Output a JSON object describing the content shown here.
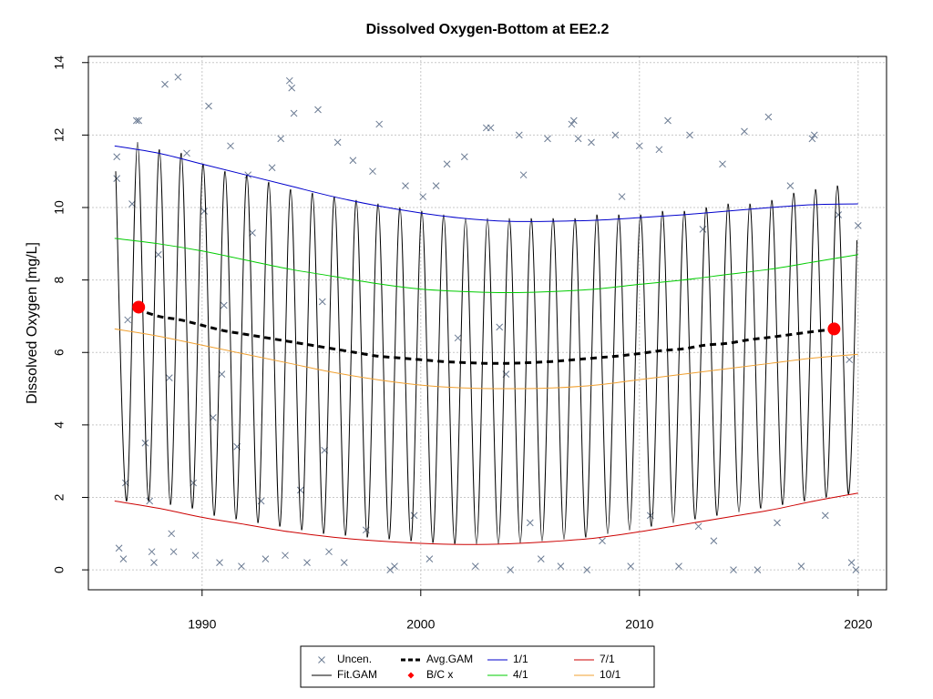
{
  "chart_data": {
    "type": "line",
    "title": "Dissolved Oxygen-Bottom at EE2.2",
    "y_label": "Dissolved Oxygen [mg/L]",
    "xlim": [
      1984.8,
      2021.3
    ],
    "ylim": [
      -0.55,
      14.17
    ],
    "xticks": [
      1990,
      2000,
      2010,
      2020
    ],
    "yticks": [
      0,
      2,
      4,
      6,
      8,
      10,
      12,
      14
    ],
    "grid": true,
    "legend": "bottom",
    "series": [
      {
        "name": "Uncen.",
        "kind": "scatter",
        "marker": "x",
        "color": "#6b7b93",
        "x": [
          1986.1,
          1986.1,
          1986.2,
          1986.4,
          1986.5,
          1986.6,
          1986.8,
          1987.0,
          1987.1,
          1987.4,
          1987.6,
          1987.7,
          1987.8,
          1988.0,
          1988.3,
          1988.5,
          1988.6,
          1988.7,
          1988.9,
          1989.3,
          1989.6,
          1989.7,
          1990.1,
          1990.3,
          1990.5,
          1990.8,
          1991.0,
          1991.3,
          1991.6,
          1991.8,
          1992.1,
          1992.3,
          1992.7,
          1992.9,
          1993.2,
          1993.6,
          1993.8,
          1994.0,
          1994.1,
          1994.2,
          1994.5,
          1994.8,
          1995.3,
          1995.6,
          1995.8,
          1996.2,
          1996.5,
          1996.9,
          1997.5,
          1997.8,
          1998.1,
          1998.6,
          1998.8,
          1999.3,
          1999.7,
          2000.1,
          2000.4,
          2000.7,
          2001.2,
          2001.7,
          2002.0,
          2002.5,
          2003.0,
          2003.2,
          2003.6,
          2004.1,
          2004.5,
          2004.7,
          2005.0,
          2005.5,
          2005.8,
          2006.4,
          2006.9,
          2007.0,
          2007.2,
          2007.6,
          2007.8,
          2008.3,
          2008.9,
          2009.2,
          2009.6,
          2010.0,
          2010.5,
          2010.9,
          2011.3,
          2011.8,
          2012.3,
          2012.7,
          2013.4,
          2013.8,
          2014.3,
          2014.8,
          2015.4,
          2015.9,
          2016.3,
          2016.9,
          2017.4,
          2017.9,
          2018.0,
          2018.5,
          2019.1,
          2019.7,
          2019.9,
          2020.0,
          2019.6,
          2012.9,
          2003.9,
          1995.5,
          1990.9
        ],
        "values": [
          11.4,
          10.8,
          0.6,
          0.3,
          2.4,
          6.9,
          10.1,
          12.4,
          12.4,
          3.5,
          1.9,
          0.5,
          0.2,
          8.7,
          13.4,
          5.3,
          1.0,
          0.5,
          13.6,
          11.5,
          2.4,
          0.4,
          9.9,
          12.8,
          4.2,
          0.2,
          7.3,
          11.7,
          3.4,
          0.1,
          10.9,
          9.3,
          1.9,
          0.3,
          11.1,
          11.9,
          0.4,
          13.5,
          13.3,
          12.6,
          2.2,
          0.2,
          12.7,
          3.3,
          0.5,
          11.8,
          0.2,
          11.3,
          1.1,
          11.0,
          12.3,
          0.0,
          0.1,
          10.6,
          1.5,
          10.3,
          0.3,
          10.6,
          11.2,
          6.4,
          11.4,
          0.1,
          12.2,
          12.2,
          6.7,
          0.0,
          12.0,
          10.9,
          1.3,
          0.3,
          11.9,
          0.1,
          12.3,
          12.4,
          11.9,
          0.0,
          11.8,
          0.8,
          12.0,
          10.3,
          0.1,
          11.7,
          1.5,
          11.6,
          12.4,
          0.1,
          12.0,
          1.2,
          0.8,
          11.2,
          0.0,
          12.1,
          0.0,
          12.5,
          1.3,
          10.6,
          0.1,
          11.9,
          12.0,
          1.5,
          9.8,
          0.2,
          0.0,
          9.5,
          5.8,
          9.4,
          5.4,
          7.4,
          5.4
        ]
      },
      {
        "name": "Fit.GAM",
        "kind": "line",
        "color": "#000000",
        "x": [
          1986.05,
          1986.55,
          1987.05,
          1987.55,
          1988.05,
          1988.55,
          1989.05,
          1989.55,
          1990.05,
          1990.55,
          1991.05,
          1991.55,
          1992.05,
          1992.55,
          1993.05,
          1993.55,
          1994.05,
          1994.55,
          1995.05,
          1995.55,
          1996.05,
          1996.55,
          1997.05,
          1997.55,
          1998.05,
          1998.55,
          1999.05,
          1999.55,
          2000.05,
          2000.55,
          2001.05,
          2001.55,
          2002.05,
          2002.55,
          2003.05,
          2003.55,
          2004.05,
          2004.55,
          2005.05,
          2005.55,
          2006.05,
          2006.55,
          2007.05,
          2007.55,
          2008.05,
          2008.55,
          2009.05,
          2009.55,
          2010.05,
          2010.55,
          2011.05,
          2011.55,
          2012.05,
          2012.55,
          2013.05,
          2013.55,
          2014.05,
          2014.55,
          2015.05,
          2015.55,
          2016.05,
          2016.55,
          2017.05,
          2017.55,
          2018.05,
          2018.55,
          2019.05,
          2019.55,
          2019.95
        ],
        "values": [
          11.0,
          1.9,
          11.8,
          1.9,
          11.6,
          1.8,
          11.5,
          1.7,
          11.2,
          1.5,
          11.0,
          1.4,
          10.9,
          1.3,
          10.7,
          1.2,
          10.5,
          1.1,
          10.4,
          1.0,
          10.3,
          0.95,
          10.2,
          0.9,
          10.1,
          0.85,
          10.0,
          0.8,
          9.9,
          0.75,
          9.8,
          0.72,
          9.7,
          0.72,
          9.7,
          0.72,
          9.7,
          0.75,
          9.7,
          0.8,
          9.7,
          0.85,
          9.7,
          0.9,
          9.8,
          1.0,
          9.8,
          1.1,
          9.8,
          1.2,
          9.9,
          1.3,
          9.9,
          1.4,
          10.0,
          1.5,
          10.1,
          1.6,
          10.1,
          1.7,
          10.2,
          1.8,
          10.4,
          1.9,
          10.5,
          2.0,
          10.6,
          2.1,
          9.1
        ]
      },
      {
        "name": "Avg.GAM",
        "kind": "line",
        "dashed": true,
        "color": "#000000",
        "x": [
          1987,
          1988,
          1989,
          1990,
          1991,
          1992,
          1993,
          1994,
          1995,
          1996,
          1997,
          1998,
          1999,
          2000,
          2001,
          2002,
          2003,
          2004,
          2005,
          2006,
          2007,
          2008,
          2009,
          2010,
          2011,
          2012,
          2013,
          2014,
          2015,
          2016,
          2017,
          2018,
          2019
        ],
        "values": [
          7.2,
          7.0,
          6.9,
          6.75,
          6.6,
          6.5,
          6.4,
          6.3,
          6.2,
          6.1,
          6.0,
          5.9,
          5.85,
          5.8,
          5.75,
          5.72,
          5.7,
          5.7,
          5.72,
          5.75,
          5.8,
          5.85,
          5.9,
          5.97,
          6.05,
          6.1,
          6.2,
          6.25,
          6.35,
          6.42,
          6.5,
          6.58,
          6.65
        ]
      },
      {
        "name": "B/C x",
        "kind": "scatter",
        "marker": "circle",
        "color": "#ff0000",
        "x": [
          1987.1,
          2018.9
        ],
        "values": [
          7.25,
          6.65
        ]
      },
      {
        "name": "1/1",
        "kind": "line",
        "color": "#0000cc",
        "x": [
          1986,
          1988,
          1990,
          1992,
          1994,
          1996,
          1998,
          2000,
          2002,
          2004,
          2006,
          2008,
          2010,
          2012,
          2014,
          2016,
          2018,
          2020
        ],
        "values": [
          11.7,
          11.5,
          11.2,
          10.9,
          10.6,
          10.3,
          10.05,
          9.85,
          9.7,
          9.62,
          9.62,
          9.65,
          9.72,
          9.8,
          9.9,
          10.0,
          10.08,
          10.1
        ]
      },
      {
        "name": "4/1",
        "kind": "line",
        "color": "#00cc00",
        "x": [
          1986,
          1988,
          1990,
          1992,
          1994,
          1996,
          1998,
          2000,
          2002,
          2004,
          2006,
          2008,
          2010,
          2012,
          2014,
          2016,
          2018,
          2020
        ],
        "values": [
          9.15,
          9.0,
          8.8,
          8.55,
          8.3,
          8.1,
          7.9,
          7.75,
          7.68,
          7.65,
          7.68,
          7.75,
          7.88,
          8.0,
          8.15,
          8.3,
          8.5,
          8.7
        ]
      },
      {
        "name": "7/1",
        "kind": "line",
        "color": "#cc0000",
        "x": [
          1986,
          1988,
          1990,
          1992,
          1994,
          1996,
          1998,
          2000,
          2002,
          2004,
          2006,
          2008,
          2010,
          2012,
          2014,
          2016,
          2018,
          2020
        ],
        "values": [
          1.9,
          1.7,
          1.45,
          1.25,
          1.05,
          0.9,
          0.8,
          0.73,
          0.7,
          0.72,
          0.78,
          0.88,
          1.05,
          1.25,
          1.45,
          1.65,
          1.9,
          2.12
        ]
      },
      {
        "name": "10/1",
        "kind": "line",
        "color": "#f0a030",
        "x": [
          1986,
          1988,
          1990,
          1992,
          1994,
          1996,
          1998,
          2000,
          2002,
          2004,
          2006,
          2008,
          2010,
          2012,
          2014,
          2016,
          2018,
          2020
        ],
        "values": [
          6.65,
          6.45,
          6.2,
          5.95,
          5.7,
          5.45,
          5.25,
          5.1,
          5.02,
          5.0,
          5.02,
          5.1,
          5.25,
          5.4,
          5.55,
          5.7,
          5.85,
          5.95
        ]
      }
    ]
  }
}
